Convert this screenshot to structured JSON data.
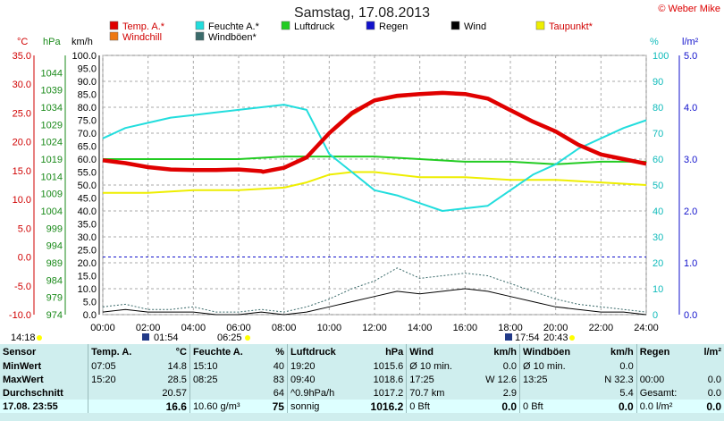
{
  "header": {
    "title": "Samstag, 17.08.2013",
    "credit": "© Weber Mike"
  },
  "legend": [
    {
      "label": "Temp. A.*",
      "color": "#e00000"
    },
    {
      "label": "Feuchte A.*",
      "color": "#22dddd"
    },
    {
      "label": "Luftdruck",
      "color": "#22cc22"
    },
    {
      "label": "Regen",
      "color": "#1111cc"
    },
    {
      "label": "Wind",
      "color": "#000000"
    },
    {
      "label": "Taupunkt*",
      "color": "#eeee00"
    },
    {
      "label": "Windchill",
      "color": "#ee7711"
    },
    {
      "label": "Windböen*",
      "color": "#3a6a6a"
    }
  ],
  "axis_units": {
    "temp": "°C",
    "pressure": "hPa",
    "wind": "km/h",
    "humidity": "%",
    "rain": "l/m²"
  },
  "sun_markers": {
    "sunrise": "06:25",
    "sunset": "20:43",
    "left_time": "14:18",
    "moonrise": "01:54",
    "moonset": "17:54"
  },
  "chart_data": {
    "type": "line",
    "x_label": "",
    "x_ticks": [
      "00:00",
      "02:00",
      "04:00",
      "06:00",
      "08:00",
      "10:00",
      "12:00",
      "14:00",
      "16:00",
      "18:00",
      "20:00",
      "22:00",
      "24:00"
    ],
    "xlim": [
      0,
      24
    ],
    "axes": {
      "temp_C": {
        "ticks": [
          -10,
          -5,
          0,
          5,
          10,
          15,
          20,
          25,
          30,
          35
        ],
        "ylim": [
          -10,
          35
        ]
      },
      "pressure_hPa": {
        "ticks": [
          974,
          979,
          984,
          989,
          994,
          999,
          1004,
          1009,
          1014,
          1019,
          1024,
          1029,
          1034,
          1039,
          1044
        ],
        "ylim": [
          974,
          1049
        ]
      },
      "wind_kmh": {
        "ticks": [
          0,
          5,
          10,
          15,
          20,
          25,
          30,
          35,
          40,
          45,
          50,
          55,
          60,
          65,
          70,
          75,
          80,
          85,
          90,
          95,
          100
        ],
        "ylim": [
          0,
          100
        ]
      },
      "humidity_pct": {
        "ticks": [
          0,
          10,
          20,
          30,
          40,
          50,
          60,
          70,
          80,
          90,
          100
        ],
        "ylim": [
          0,
          100
        ]
      },
      "rain_lm2": {
        "ticks": [
          "0.0",
          "1.0",
          "2.0",
          "3.0",
          "4.0",
          "5.0"
        ],
        "ylim": [
          0,
          5
        ]
      }
    },
    "reference_line": {
      "axis": "temp_C",
      "value": 0
    },
    "series": [
      {
        "name": "Temp. A.*",
        "axis": "temp_C",
        "color": "#e00000",
        "x": [
          0,
          1,
          2,
          3,
          4,
          5,
          6,
          7,
          7.08,
          8,
          9,
          10,
          11,
          12,
          13,
          14,
          15,
          16,
          17,
          18,
          19,
          20,
          21,
          22,
          23,
          24
        ],
        "y": [
          16.8,
          16.3,
          15.6,
          15.2,
          15.1,
          15.1,
          15.2,
          14.9,
          14.8,
          15.5,
          17.3,
          21.5,
          25.0,
          27.2,
          28.0,
          28.3,
          28.5,
          28.3,
          27.5,
          25.5,
          23.5,
          21.8,
          19.5,
          17.8,
          17.0,
          16.2
        ]
      },
      {
        "name": "Windchill",
        "axis": "temp_C",
        "color": "#ee7711",
        "x": [
          10,
          11,
          12,
          13,
          14,
          15,
          16,
          17,
          18,
          19,
          20,
          21,
          22
        ],
        "y": [
          21.3,
          24.6,
          27.0,
          27.7,
          28.1,
          28.3,
          28.5,
          27.6,
          25.6,
          23.6,
          21.6,
          19.3,
          17.9
        ]
      },
      {
        "name": "Feuchte A.*",
        "axis": "humidity_pct",
        "color": "#22dddd",
        "x": [
          0,
          1,
          2,
          3,
          4,
          5,
          6,
          7,
          8,
          9,
          10,
          11,
          12,
          13,
          14,
          15,
          16,
          17,
          18,
          19,
          20,
          21,
          22,
          23,
          24
        ],
        "y": [
          68,
          72,
          74,
          76,
          77,
          78,
          79,
          80,
          81,
          79,
          62,
          55,
          48,
          46,
          43,
          40,
          41,
          42,
          48,
          54,
          58,
          64,
          68,
          72,
          75
        ]
      },
      {
        "name": "Taupunkt*",
        "axis": "humidity_pct",
        "color": "#eeee00",
        "x": [
          0,
          2,
          4,
          6,
          8,
          9,
          10,
          11,
          12,
          13,
          14,
          16,
          18,
          20,
          22,
          24
        ],
        "y": [
          47,
          47,
          48,
          48,
          49,
          51,
          54,
          55,
          55,
          54,
          53,
          53,
          52,
          52,
          51,
          50
        ]
      },
      {
        "name": "Luftdruck",
        "axis": "humidity_pct",
        "color": "#22cc22",
        "x": [
          0,
          2,
          4,
          6,
          8,
          10,
          12,
          14,
          16,
          18,
          20,
          22,
          24
        ],
        "y": [
          60,
          60,
          60,
          60,
          61,
          61,
          61,
          60,
          59,
          59,
          58,
          59,
          59
        ]
      },
      {
        "name": "Wind",
        "axis": "wind_kmh",
        "color": "#000000",
        "x": [
          0,
          1,
          2,
          3,
          4,
          5,
          6,
          7,
          8,
          9,
          10,
          11,
          12,
          13,
          14,
          15,
          16,
          17,
          18,
          19,
          20,
          21,
          22,
          23,
          24
        ],
        "y": [
          1,
          2,
          1,
          1,
          1,
          0,
          0,
          1,
          0,
          1,
          3,
          5,
          7,
          9,
          8,
          9,
          10,
          9,
          7,
          5,
          3,
          2,
          1,
          1,
          0
        ]
      },
      {
        "name": "Windböen*",
        "axis": "wind_kmh",
        "color": "#3a6a6a",
        "x": [
          0,
          1,
          2,
          3,
          4,
          5,
          6,
          7,
          8,
          9,
          10,
          11,
          12,
          13,
          14,
          15,
          16,
          17,
          18,
          19,
          20,
          21,
          22,
          23,
          24
        ],
        "y": [
          3,
          4,
          2,
          2,
          3,
          1,
          1,
          2,
          1,
          3,
          6,
          10,
          13,
          18,
          14,
          15,
          16,
          15,
          12,
          9,
          6,
          4,
          3,
          2,
          1
        ]
      }
    ]
  },
  "stats": {
    "headers": [
      "Sensor",
      "Temp. A.",
      "°C",
      "Feuchte A.",
      "%",
      "Luftdruck",
      "hPa",
      "Wind",
      "km/h",
      "Windböen",
      "km/h",
      "Regen",
      "l/m²"
    ],
    "rows": [
      [
        "MinWert",
        "07:05",
        "14.8",
        "15:10",
        "40",
        "19:20",
        "1015.6",
        "Ø 10 min.",
        "0.0",
        "Ø 10 min.",
        "0.0",
        "",
        ""
      ],
      [
        "MaxWert",
        "15:20",
        "28.5",
        "08:25",
        "83",
        "09:40",
        "1018.6",
        "17:25",
        "W 12.6",
        "13:25",
        "N 32.3",
        "00:00",
        "0.0"
      ],
      [
        "Durchschnitt",
        "",
        "20.57",
        "",
        "64",
        "^0.9hPa/h",
        "1017.2",
        "70.7 km",
        "2.9",
        "",
        "5.4",
        "Gesamt:",
        "0.0"
      ],
      [
        "17.08. 23:55",
        "",
        "16.6",
        "10.60 g/m³",
        "75",
        "sonnig",
        "1016.2",
        "0 Bft",
        "0.0",
        "0 Bft",
        "0.0",
        "0.0 l/m²",
        "0.0"
      ]
    ]
  }
}
